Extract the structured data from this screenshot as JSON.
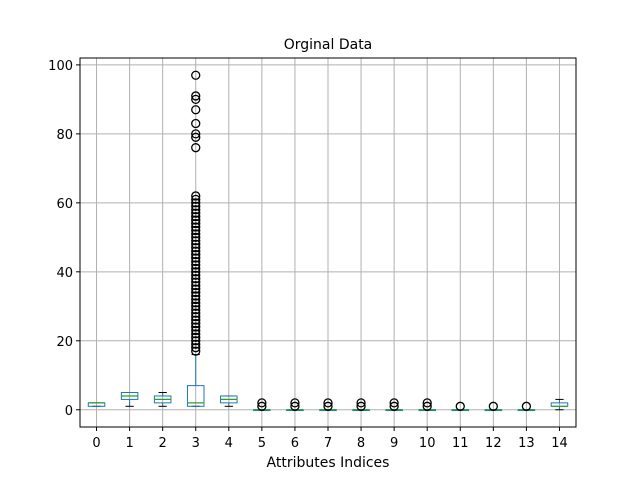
{
  "chart_data": {
    "type": "box",
    "title": "Orginal Data",
    "xlabel": "Attributes Indices",
    "ylabel": "",
    "ylim": [
      -5,
      102
    ],
    "yticks": [
      0,
      20,
      40,
      60,
      80,
      100
    ],
    "grid": true,
    "colors": {
      "box": "#1f77b4",
      "median": "#2ca02c",
      "grid": "#b0b0b0",
      "flier": "#000000"
    },
    "categories": [
      "0",
      "1",
      "2",
      "3",
      "4",
      "5",
      "6",
      "7",
      "8",
      "9",
      "10",
      "11",
      "12",
      "13",
      "14"
    ],
    "boxes": [
      {
        "label": "0",
        "whislo": 1,
        "q1": 1,
        "med": 2,
        "q3": 2,
        "whishi": 2,
        "fliers": []
      },
      {
        "label": "1",
        "whislo": 1,
        "q1": 3,
        "med": 4,
        "q3": 5,
        "whishi": 5,
        "fliers": []
      },
      {
        "label": "2",
        "whislo": 1,
        "q1": 2,
        "med": 3,
        "q3": 4,
        "whishi": 5,
        "fliers": []
      },
      {
        "label": "3",
        "whislo": 1,
        "q1": 1,
        "med": 2,
        "q3": 7,
        "whishi": 16,
        "fliers": [
          17,
          18,
          19,
          20,
          21,
          22,
          23,
          24,
          25,
          26,
          27,
          28,
          29,
          30,
          31,
          32,
          33,
          34,
          35,
          36,
          37,
          38,
          39,
          40,
          41,
          42,
          43,
          44,
          45,
          46,
          47,
          48,
          49,
          50,
          51,
          52,
          53,
          54,
          55,
          56,
          57,
          58,
          59,
          60,
          61,
          62,
          76,
          79,
          80,
          83,
          87,
          90,
          91,
          97
        ]
      },
      {
        "label": "4",
        "whislo": 1,
        "q1": 2,
        "med": 3,
        "q3": 4,
        "whishi": 4,
        "fliers": []
      },
      {
        "label": "5",
        "whislo": 0,
        "q1": 0,
        "med": 0,
        "q3": 0,
        "whishi": 0,
        "fliers": [
          1,
          2
        ]
      },
      {
        "label": "6",
        "whislo": 0,
        "q1": 0,
        "med": 0,
        "q3": 0,
        "whishi": 0,
        "fliers": [
          1,
          2
        ]
      },
      {
        "label": "7",
        "whislo": 0,
        "q1": 0,
        "med": 0,
        "q3": 0,
        "whishi": 0,
        "fliers": [
          1,
          2
        ]
      },
      {
        "label": "8",
        "whislo": 0,
        "q1": 0,
        "med": 0,
        "q3": 0,
        "whishi": 0,
        "fliers": [
          1,
          2
        ]
      },
      {
        "label": "9",
        "whislo": 0,
        "q1": 0,
        "med": 0,
        "q3": 0,
        "whishi": 0,
        "fliers": [
          1,
          2
        ]
      },
      {
        "label": "10",
        "whislo": 0,
        "q1": 0,
        "med": 0,
        "q3": 0,
        "whishi": 0,
        "fliers": [
          1,
          2
        ]
      },
      {
        "label": "11",
        "whislo": 0,
        "q1": 0,
        "med": 0,
        "q3": 0,
        "whishi": 0,
        "fliers": [
          1
        ]
      },
      {
        "label": "12",
        "whislo": 0,
        "q1": 0,
        "med": 0,
        "q3": 0,
        "whishi": 0,
        "fliers": [
          1
        ]
      },
      {
        "label": "13",
        "whislo": 0,
        "q1": 0,
        "med": 0,
        "q3": 0,
        "whishi": 0,
        "fliers": [
          1
        ]
      },
      {
        "label": "14",
        "whislo": 0,
        "q1": 1,
        "med": 1,
        "q3": 2,
        "whishi": 3,
        "fliers": []
      }
    ]
  }
}
